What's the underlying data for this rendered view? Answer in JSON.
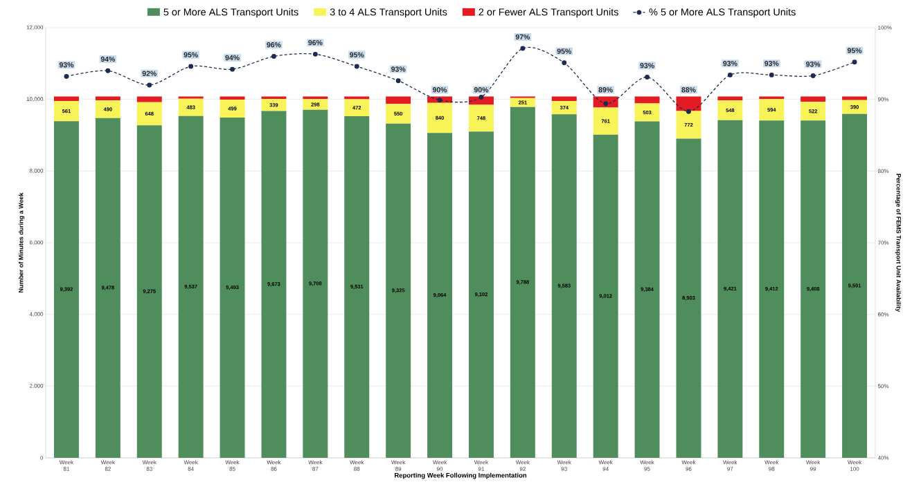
{
  "chart_data": {
    "type": "bar",
    "stacked": true,
    "xlabel": "Reporting Week Following Implementation",
    "ylabel": "Number of Minutes during a Week",
    "y2label": "Percentage of FEMS Transport Unit Availability",
    "categories": [
      "Week 81",
      "Week 82",
      "Week 83",
      "Week 84",
      "Week 85",
      "Week 86",
      "Week 87",
      "Week 88",
      "Week 89",
      "Week 90",
      "Week 91",
      "Week 92",
      "Week 93",
      "Week 94",
      "Week 95",
      "Week 96",
      "Week 97",
      "Week 98",
      "Week 99",
      "Week 100"
    ],
    "series": [
      {
        "name": "5 or More ALS Transport Units",
        "color": "#4f8d5c",
        "values": [
          9392,
          9478,
          9275,
          9537,
          9493,
          9673,
          9708,
          9531,
          9325,
          9064,
          9102,
          9788,
          9583,
          9012,
          9384,
          8903,
          9421,
          9412,
          9408,
          9591
        ],
        "value_labels": [
          "9,392",
          "9,478",
          "9,275",
          "9,537",
          "9,493",
          "9,673",
          "9,708",
          "9,531",
          "9,325",
          "9,064",
          "9,102",
          "9,788",
          "9,583",
          "9,012",
          "9,384",
          "8,903",
          "9,421",
          "9,412",
          "9,408",
          "9,591"
        ]
      },
      {
        "name": "3 to 4 ALS Transport Units",
        "color": "#f9f35a",
        "values": [
          561,
          490,
          648,
          483,
          499,
          339,
          298,
          472,
          550,
          840,
          748,
          251,
          374,
          761,
          503,
          772,
          548,
          594,
          522,
          390
        ],
        "value_labels": [
          "561",
          "490",
          "648",
          "483",
          "499",
          "339",
          "298",
          "472",
          "550",
          "840",
          "748",
          "251",
          "374",
          "761",
          "503",
          "772",
          "548",
          "594",
          "522",
          "390"
        ]
      },
      {
        "name": "2 or Fewer ALS Transport Units",
        "color": "#e31b23",
        "values": [
          127,
          112,
          157,
          60,
          88,
          68,
          74,
          77,
          205,
          176,
          230,
          41,
          123,
          307,
          193,
          405,
          111,
          74,
          150,
          99
        ]
      },
      {
        "name": "% 5 or More ALS Transport Units",
        "type": "line",
        "axis": "y2",
        "color": "#1c2b4f",
        "marker": "circle",
        "line_style": "dashed",
        "values": [
          93.2,
          94.0,
          92.0,
          94.6,
          94.2,
          96.0,
          96.3,
          94.6,
          92.6,
          89.9,
          90.3,
          97.1,
          95.1,
          89.4,
          93.1,
          88.3,
          93.4,
          93.4,
          93.3,
          95.2
        ],
        "value_labels": [
          "93%",
          "94%",
          "92%",
          "95%",
          "94%",
          "96%",
          "96%",
          "95%",
          "93%",
          "90%",
          "90%",
          "97%",
          "95%",
          "89%",
          "93%",
          "88%",
          "93%",
          "93%",
          "93%",
          "95%"
        ]
      }
    ],
    "ylim": [
      0,
      12000
    ],
    "yticks": [
      0,
      {
        "value": 2000,
        "label": "2,000"
      },
      {
        "value": 4000,
        "label": "4,000"
      },
      {
        "value": 6000,
        "label": "6,000"
      },
      {
        "value": 8000,
        "label": "8,000"
      },
      {
        "value": 10000,
        "label": "10,000"
      },
      {
        "value": 12000,
        "label": "12,000"
      }
    ],
    "y2lim": [
      40,
      100
    ],
    "y2ticks": [
      {
        "value": 40,
        "label": "40%"
      },
      {
        "value": 50,
        "label": "50%"
      },
      {
        "value": 60,
        "label": "60%"
      },
      {
        "value": 70,
        "label": "70%"
      },
      {
        "value": 80,
        "label": "80%"
      },
      {
        "value": 90,
        "label": "90%"
      },
      {
        "value": 100,
        "label": "100%"
      }
    ],
    "grid": "y",
    "legend": "top"
  }
}
